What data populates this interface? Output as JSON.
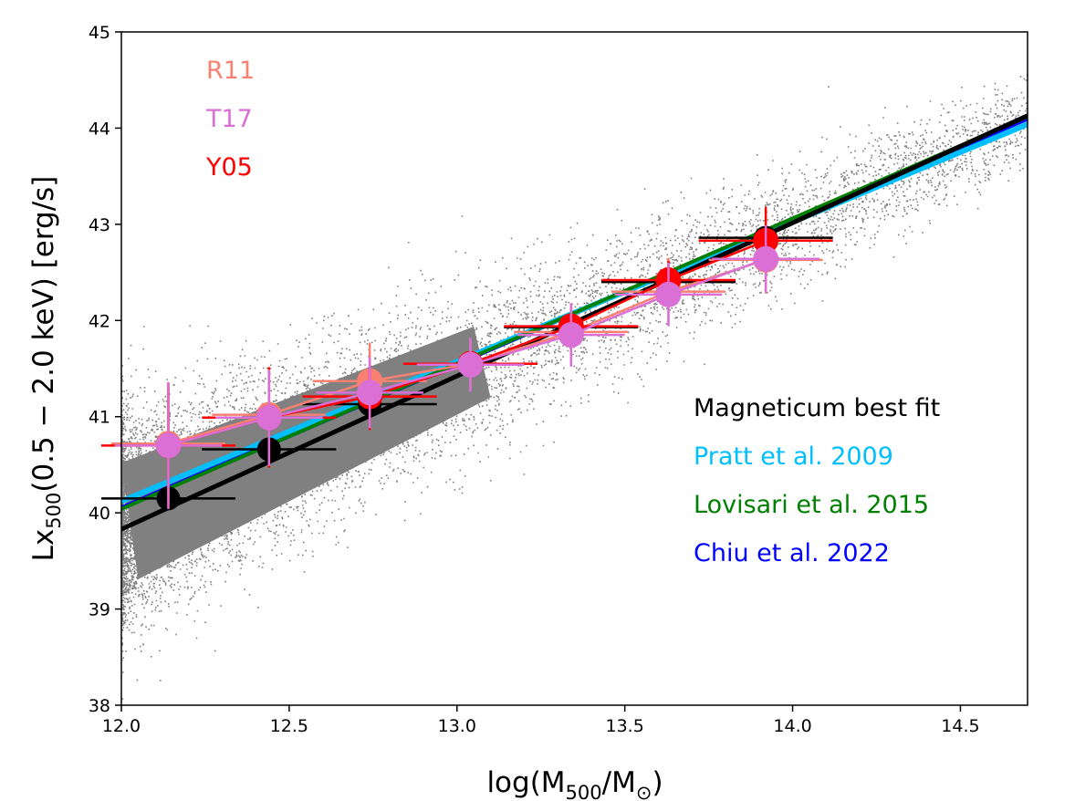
{
  "chart_data": {
    "type": "scatter",
    "title": "",
    "xlabel": {
      "main": "log(M",
      "sub1": "500",
      "mid": "/M",
      "sub2": "⊙",
      "end": ")"
    },
    "ylabel": {
      "main": "Lx",
      "sub": "500",
      "rest": "(0.5 − 2.0 keV) [erg/s]"
    },
    "xlim": [
      12.0,
      14.7
    ],
    "ylim": [
      38,
      45
    ],
    "xticks": [
      12.0,
      12.5,
      13.0,
      13.5,
      14.0,
      14.5
    ],
    "xtick_labels": [
      "12.0",
      "12.5",
      "13.0",
      "13.5",
      "14.0",
      "14.5"
    ],
    "yticks": [
      38,
      39,
      40,
      41,
      42,
      43,
      44,
      45
    ],
    "ytick_labels": [
      "38",
      "39",
      "40",
      "41",
      "42",
      "43",
      "44",
      "45"
    ],
    "grid": false,
    "background_cloud": {
      "color": "#808080",
      "description": "simulated clusters"
    },
    "fit_lines": [
      {
        "name": "Chiu et al. 2022",
        "color": "#0000ff",
        "x": [
          12.0,
          14.7
        ],
        "y": [
          40.05,
          44.1
        ]
      },
      {
        "name": "Pratt et al. 2009",
        "color": "#00bfff",
        "x": [
          12.0,
          14.7
        ],
        "y": [
          40.12,
          44.04
        ]
      },
      {
        "name": "Lovisari et al. 2015",
        "color": "#008000",
        "x": [
          12.0,
          14.7
        ],
        "y": [
          40.04,
          44.12
        ]
      },
      {
        "name": "Magneticum best fit",
        "color": "#000000",
        "x": [
          12.0,
          14.7
        ],
        "y": [
          39.83,
          44.13
        ]
      }
    ],
    "series": [
      {
        "name": "Magneticum",
        "color": "#000000",
        "x": [
          12.14,
          12.44,
          12.74,
          13.04,
          13.34,
          13.63,
          13.92
        ],
        "y": [
          40.15,
          40.66,
          41.13,
          41.55,
          41.93,
          42.4,
          42.86
        ],
        "xerr": [
          0.2,
          0.2,
          0.2,
          0.2,
          0.2,
          0.2,
          0.2
        ],
        "yerr": [
          0.05,
          0.05,
          0.05,
          0.05,
          0.05,
          0.05,
          0.05
        ]
      },
      {
        "name": "R11",
        "color": "#fa8072",
        "x": [
          12.14,
          12.44,
          12.74,
          13.04,
          13.34,
          13.63,
          13.92
        ],
        "y": [
          40.72,
          41.02,
          41.37,
          41.55,
          41.88,
          42.3,
          42.63
        ],
        "xerr": [
          0.17,
          0.17,
          0.17,
          0.17,
          0.17,
          0.17,
          0.17
        ],
        "yerr": [
          0.6,
          0.5,
          0.4,
          0.25,
          0.3,
          0.35,
          0.35
        ]
      },
      {
        "name": "Y05",
        "color": "#ff0000",
        "x": [
          12.14,
          12.44,
          12.74,
          13.04,
          13.34,
          13.63,
          13.92
        ],
        "y": [
          40.7,
          40.99,
          41.21,
          41.55,
          41.94,
          42.42,
          42.83
        ],
        "xerr": [
          0.2,
          0.2,
          0.2,
          0.2,
          0.2,
          0.2,
          0.2
        ],
        "yerr": [
          0.65,
          0.52,
          0.35,
          0.12,
          0.2,
          0.2,
          0.35
        ]
      },
      {
        "name": "T17",
        "color": "#da70d6",
        "x": [
          12.14,
          12.44,
          12.74,
          13.04,
          13.34,
          13.63,
          13.92
        ],
        "y": [
          40.7,
          40.99,
          41.25,
          41.54,
          41.85,
          42.27,
          42.64
        ],
        "xerr": [
          0.16,
          0.16,
          0.16,
          0.16,
          0.16,
          0.16,
          0.16
        ],
        "yerr": [
          0.66,
          0.5,
          0.37,
          0.28,
          0.33,
          0.33,
          0.35
        ]
      }
    ],
    "legend_left": [
      {
        "label": "R11",
        "color": "#fa8072"
      },
      {
        "label": "T17",
        "color": "#da70d6"
      },
      {
        "label": "Y05",
        "color": "#ff0000"
      }
    ],
    "legend_right": [
      {
        "label": "Magneticum best fit",
        "color": "#000000"
      },
      {
        "label": "Pratt et al. 2009",
        "color": "#00bfff"
      },
      {
        "label": "Lovisari et al. 2015",
        "color": "#008000"
      },
      {
        "label": "Chiu et al. 2022",
        "color": "#0000ff"
      }
    ]
  }
}
